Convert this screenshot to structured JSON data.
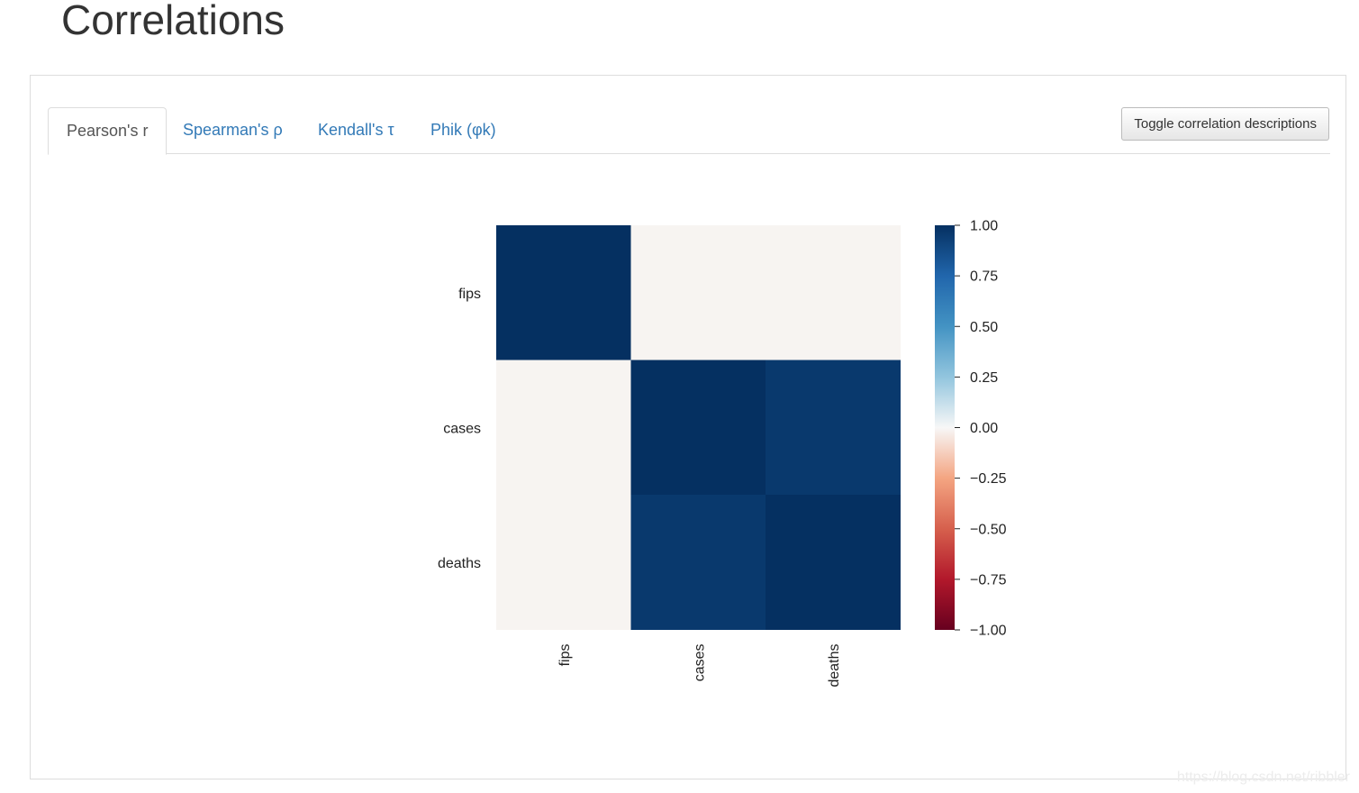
{
  "page": {
    "title": "Correlations"
  },
  "tabs": [
    {
      "label": "Pearson's r",
      "active": true
    },
    {
      "label": "Spearman's ρ",
      "active": false
    },
    {
      "label": "Kendall's τ",
      "active": false
    },
    {
      "label": "Phik (φk)",
      "active": false
    }
  ],
  "toggle_label": "Toggle correlation descriptions",
  "watermark": "https://blog.csdn.net/ribbler",
  "colors": {
    "tab_link": "#337ab7",
    "colormap": "RdBu"
  },
  "chart_data": {
    "type": "heatmap",
    "row_labels": [
      "fips",
      "cases",
      "deaths"
    ],
    "col_labels": [
      "fips",
      "cases",
      "deaths"
    ],
    "values": [
      [
        1.0,
        0.0,
        0.0
      ],
      [
        0.0,
        1.0,
        0.96
      ],
      [
        0.0,
        0.96,
        1.0
      ]
    ],
    "colorbar": {
      "min": -1.0,
      "max": 1.0,
      "ticks": [
        "1.00",
        "0.75",
        "0.50",
        "0.25",
        "0.00",
        "−0.25",
        "−0.50",
        "−0.75",
        "−1.00"
      ]
    }
  }
}
